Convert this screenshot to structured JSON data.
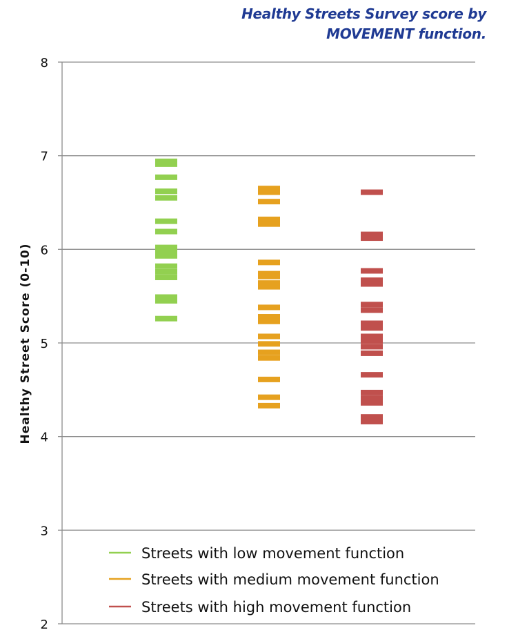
{
  "chart_data": {
    "type": "scatter",
    "title": [
      "Healthy Streets Survey score by",
      "MOVEMENT function."
    ],
    "ylabel": "Healthy Street Score (0-10)",
    "xlabel": "",
    "ylim": [
      2,
      8
    ],
    "yticks": [
      "2",
      "3",
      "4",
      "5",
      "6",
      "7",
      "8"
    ],
    "grid": true,
    "legend_position": "bottom-center",
    "series": [
      {
        "name": "Streets with low movement function",
        "color": "#92d050",
        "values": [
          6.94,
          6.91,
          6.77,
          6.62,
          6.55,
          6.3,
          6.19,
          6.02,
          5.98,
          5.93,
          5.82,
          5.76,
          5.7,
          5.49,
          5.45,
          5.26
        ]
      },
      {
        "name": "Streets with medium movement function",
        "color": "#e6a11f",
        "values": [
          6.65,
          6.61,
          6.51,
          6.32,
          6.27,
          5.86,
          5.74,
          5.71,
          5.64,
          5.6,
          5.38,
          5.28,
          5.23,
          5.07,
          4.99,
          4.9,
          4.84,
          4.61,
          4.42,
          4.33
        ]
      },
      {
        "name": "Streets with high movement function",
        "color": "#c0504d",
        "values": [
          6.61,
          6.16,
          6.12,
          5.77,
          5.67,
          5.63,
          5.41,
          5.35,
          5.21,
          5.16,
          5.07,
          5.02,
          4.96,
          4.89,
          4.66,
          4.47,
          4.41,
          4.36,
          4.21,
          4.16
        ]
      }
    ]
  }
}
